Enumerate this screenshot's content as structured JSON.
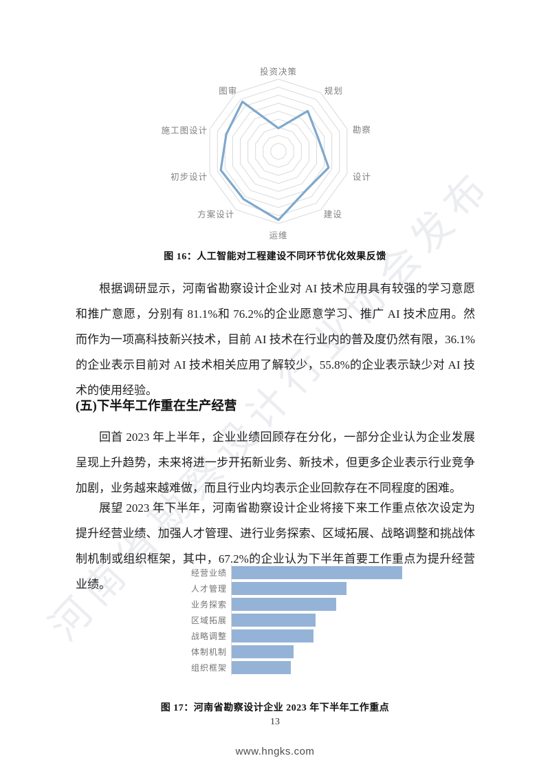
{
  "page": {
    "number": "13",
    "footer_url": "www.hngks.com"
  },
  "watermark": {
    "text": "河南省勘察设计行业协会发布"
  },
  "sections": {
    "fig16_caption": "图 16：人工智能对工程建设不同环节优化效果反馈",
    "para1": "根据调研显示，河南省勘察设计企业对 AI 技术应用具有较强的学习意愿和推广意愿，分别有 81.1%和 76.2%的企业愿意学习、推广 AI 技术应用。然而作为一项高科技新兴技术，目前 AI 技术在行业内的普及度仍然有限，36.1%的企业表示目前对 AI 技术相关应用了解较少，55.8%的企业表示缺少对 AI 技术的使用经验。",
    "heading5": "(五)下半年工作重在生产经营",
    "para2": "回首 2023 年上半年，企业业绩回顾存在分化，一部分企业认为企业发展呈现上升趋势，未来将进一步开拓新业务、新技术，但更多企业表示行业竞争加剧，业务越来越难做，而且行业内均表示企业回款存在不同程度的困难。",
    "para3": "展望 2023 年下半年，河南省勘察设计企业将接下来工作重点依次设定为提升经营业绩、加强人才管理、进行业务探索、区域拓展、战略调整和挑战体制机制或组织框架，其中，67.2%的企业认为下半年首要工作重点为提升经营业绩。",
    "fig17_caption": "图 17：河南省勘察设计企业 2023 年下半年工作重点"
  },
  "chart_data": [
    {
      "type": "radar",
      "title": "人工智能对工程建设不同环节优化效果反馈",
      "categories": [
        "投资决策",
        "规划",
        "勘察",
        "设计",
        "建设",
        "运维",
        "方案设计",
        "初步设计",
        "施工图设计",
        "图审"
      ],
      "values": [
        0.32,
        0.69,
        0.58,
        0.73,
        0.66,
        0.95,
        0.82,
        0.84,
        0.76,
        0.85
      ],
      "value_note": "estimated fraction of outer ring; chart shows no numeric axis labels",
      "rings": 9,
      "grid": "concentric decagons, no radial spokes",
      "legend": "none",
      "line_color": "#7fa8cc",
      "grid_color": "#d9d9d9",
      "label_color": "#808080"
    },
    {
      "type": "bar",
      "title": "河南省勘察设计企业 2023 年下半年工作重点",
      "orientation": "horizontal",
      "categories": [
        "经营业绩",
        "人才管理",
        "业务探索",
        "区域拓展",
        "战略调整",
        "体制机制",
        "组织框架"
      ],
      "values": [
        67.2,
        45.3,
        41.2,
        33.1,
        32.3,
        24.4,
        23.4
      ],
      "value_note": "percent; 67.2% stated in body text, remaining values estimated from bar lengths",
      "xlim": [
        0,
        75
      ],
      "grid": false,
      "legend": "none",
      "bar_color": "#95b3d7",
      "label_color": "#737373"
    }
  ]
}
